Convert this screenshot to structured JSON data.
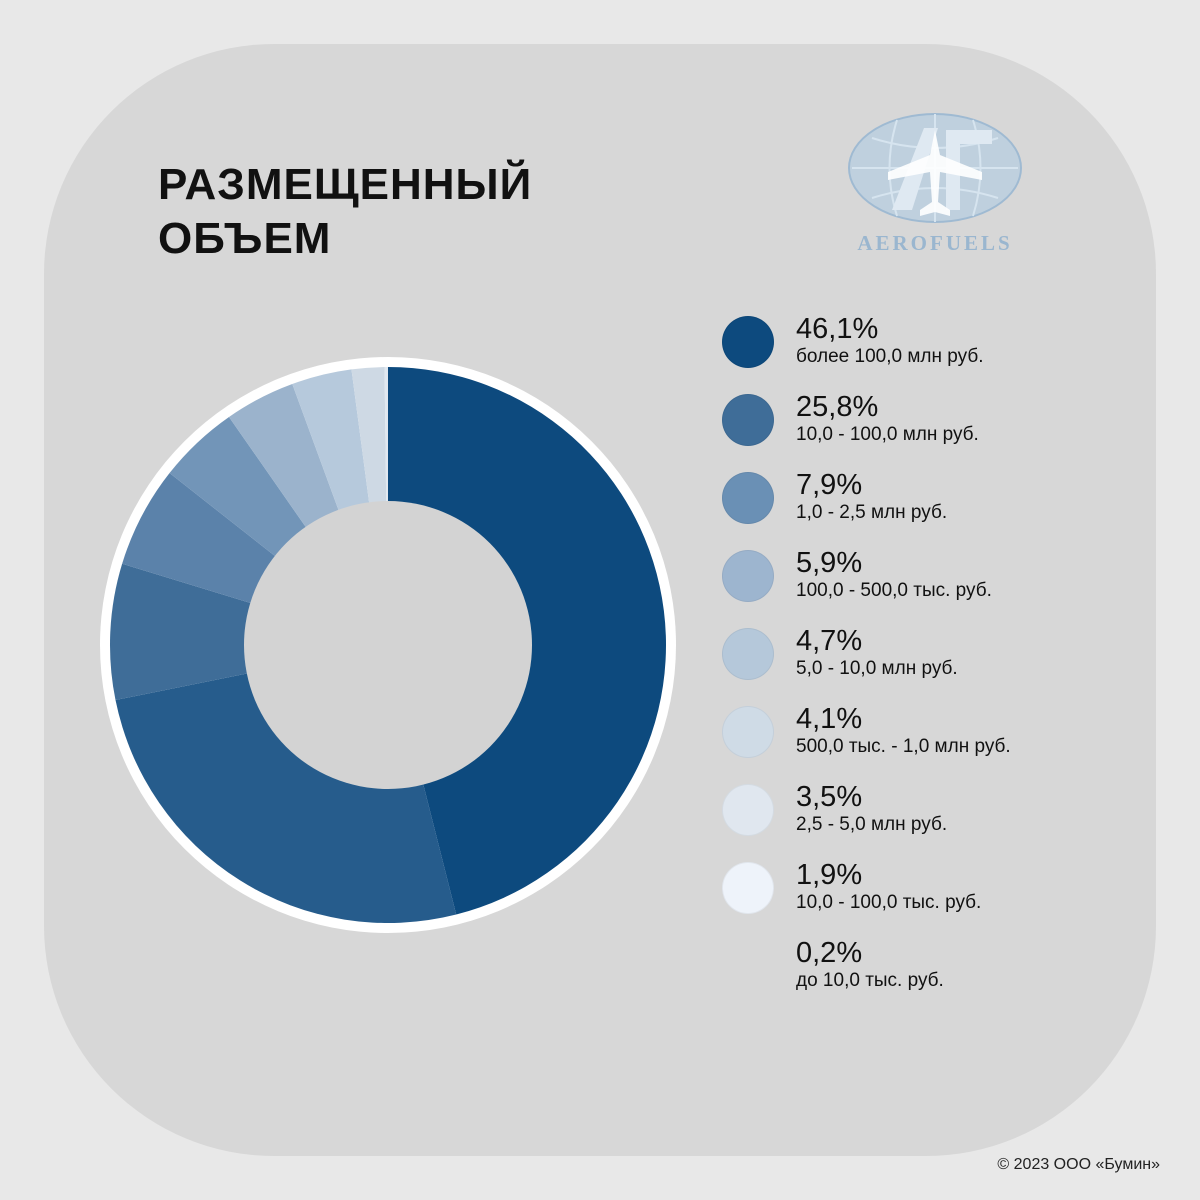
{
  "title": "РАЗМЕЩЕННЫЙ\nОБЪЕМ",
  "logo": {
    "text": "AEROFUELS",
    "monogram": "АГ",
    "color": "#a9c2d8"
  },
  "chart_data": {
    "type": "pie",
    "title": "РАЗМЕЩЕННЫЙ ОБЪЕМ",
    "legend_position": "right",
    "slices": [
      {
        "label": "более 100,0 млн руб.",
        "value": 46.1,
        "value_text": "46,1%",
        "color": "#0d4a7e"
      },
      {
        "label": "10,0 - 100,0 млн руб.",
        "value": 25.8,
        "value_text": "25,8%",
        "color": "#265c8c"
      },
      {
        "label": "1,0 - 2,5 млн руб.",
        "value": 7.9,
        "value_text": "7,9%",
        "color": "#3f6d98"
      },
      {
        "label": "100,0 - 500,0 тыс. руб.",
        "value": 5.9,
        "value_text": "5,9%",
        "color": "#5b82aa"
      },
      {
        "label": "5,0 - 10,0 млн руб.",
        "value": 4.7,
        "value_text": "4,7%",
        "color": "#7295b8"
      },
      {
        "label": "500,0 тыс. - 1,0 млн руб.",
        "value": 4.1,
        "value_text": "4,1%",
        "color": "#9bb3cc"
      },
      {
        "label": "2,5 - 5,0 млн руб.",
        "value": 3.5,
        "value_text": "3,5%",
        "color": "#b6c9dc"
      },
      {
        "label": "10,0 - 100,0 тыс. руб.",
        "value": 1.9,
        "value_text": "1,9%",
        "color": "#ced9e4"
      },
      {
        "label": "до 10,0 тыс. руб.",
        "value": 0.2,
        "value_text": "0,2%",
        "color": "#e1e8f0"
      }
    ],
    "legend": [
      {
        "value_text": "46,1%",
        "label": "более 100,0 млн руб.",
        "color": "#0d4a7e"
      },
      {
        "value_text": "25,8%",
        "label": "10,0 - 100,0 млн руб.",
        "color": "#3f6d98"
      },
      {
        "value_text": "7,9%",
        "label": "1,0 - 2,5 млн руб.",
        "color": "#6a90b5"
      },
      {
        "value_text": "5,9%",
        "label": "100,0 - 500,0 тыс. руб.",
        "color": "#9db5cf"
      },
      {
        "value_text": "4,7%",
        "label": "5,0 - 10,0 млн руб.",
        "color": "#b5c8da"
      },
      {
        "value_text": "4,1%",
        "label": "500,0 тыс. - 1,0 млн руб.",
        "color": "#cfdbe6"
      },
      {
        "value_text": "3,5%",
        "label": "2,5 - 5,0 млн руб.",
        "color": "#e0e7ef"
      },
      {
        "value_text": "1,9%",
        "label": "10,0 - 100,0 тыс. руб.",
        "color": "#eef3fa"
      },
      {
        "value_text": "0,2%",
        "label": "до 10,0 тыс. руб.",
        "color": ""
      }
    ]
  },
  "copyright": "© 2023 ООО «Бумин»"
}
